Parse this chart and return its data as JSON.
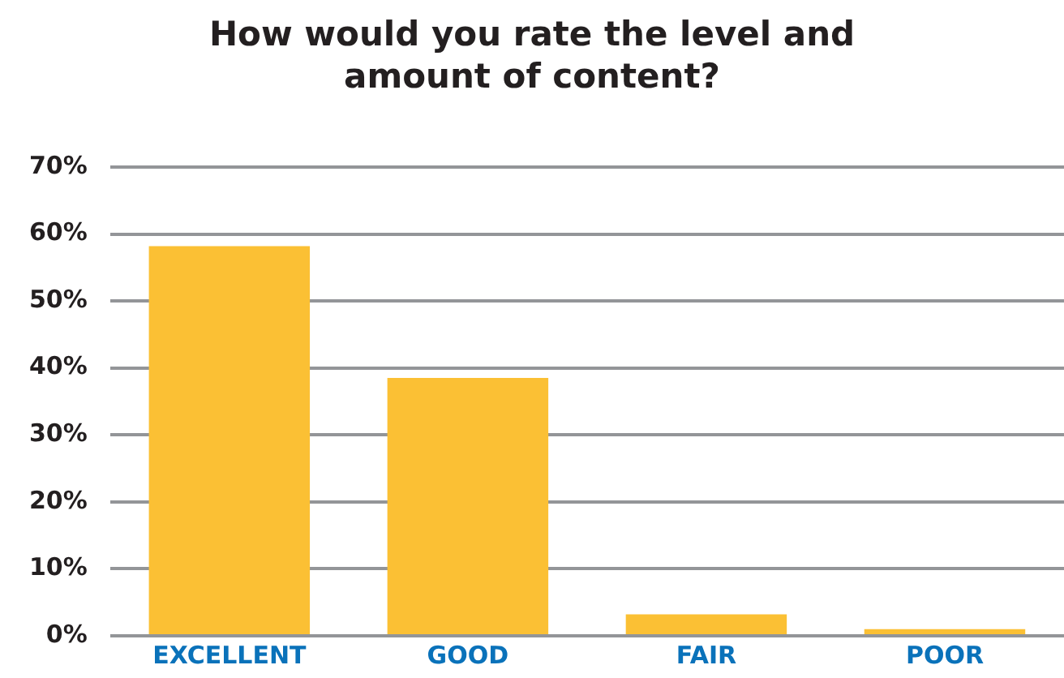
{
  "chart_data": {
    "type": "bar",
    "title": "How would you rate the level and amount of content?",
    "categories": [
      "EXCELLENT",
      "GOOD",
      "FAIR",
      "POOR"
    ],
    "values": [
      58.2,
      38.5,
      3.2,
      1.0
    ],
    "color": "#fbc034",
    "ylim": [
      0,
      70
    ],
    "yticks": [
      {
        "value": 0,
        "label": "0%"
      },
      {
        "value": 10,
        "label": "10%"
      },
      {
        "value": 20,
        "label": "20%"
      },
      {
        "value": 30,
        "label": "30%"
      },
      {
        "value": 40,
        "label": "40%"
      },
      {
        "value": 50,
        "label": "50%"
      },
      {
        "value": 60,
        "label": "60%"
      },
      {
        "value": 70,
        "label": "70%"
      }
    ],
    "grid": "y",
    "legend": false
  }
}
